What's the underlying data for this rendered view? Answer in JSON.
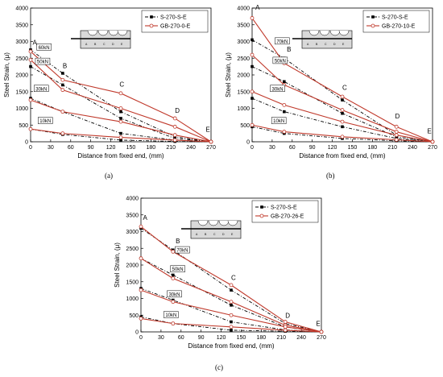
{
  "colors": {
    "specimen": "#000000",
    "gb": "#c0392b",
    "frame": "#000000"
  },
  "chart_data": [
    {
      "type": "line",
      "caption": "(a)",
      "xlabel": "Distance from fixed end, (mm)",
      "ylabel": "Steel Strain, (μ)",
      "xlim": [
        0,
        270
      ],
      "ylim": [
        0,
        4000
      ],
      "xticks": [
        "0",
        "30",
        "60",
        "90",
        "120",
        "150",
        "180",
        "210",
        "240",
        "270"
      ],
      "yticks": [
        "0",
        "500",
        "1000",
        "1500",
        "2000",
        "2500",
        "3000",
        "3500",
        "4000"
      ],
      "legend": {
        "placement": "top-right",
        "entries": [
          "S-270-S-E",
          "GB-270-0-E"
        ]
      },
      "point_labels": [
        {
          "text": "A",
          "x": 3,
          "y": 2900
        },
        {
          "text": "B",
          "x": 48,
          "y": 2200
        },
        {
          "text": "C",
          "x": 133,
          "y": 1650
        },
        {
          "text": "D",
          "x": 216,
          "y": 870
        },
        {
          "text": "E",
          "x": 262,
          "y": 300
        }
      ],
      "load_labels": [
        {
          "text": "60kN",
          "x": 20,
          "y": 2800
        },
        {
          "text": "50kN",
          "x": 18,
          "y": 2370
        },
        {
          "text": "30kN",
          "x": 16,
          "y": 1560
        },
        {
          "text": "10kN",
          "x": 22,
          "y": 600
        }
      ],
      "series": [
        {
          "name": "S-270-S-E",
          "load": "60kN",
          "style": "specimen",
          "x": [
            0,
            48,
            135,
            216,
            270
          ],
          "y": [
            2750,
            2050,
            900,
            150,
            0
          ]
        },
        {
          "name": "S-270-S-E",
          "load": "50kN",
          "style": "specimen",
          "x": [
            0,
            48,
            135,
            216,
            270
          ],
          "y": [
            2250,
            1700,
            700,
            100,
            0
          ]
        },
        {
          "name": "S-270-S-E",
          "load": "30kN",
          "style": "specimen",
          "x": [
            0,
            48,
            135,
            216,
            270
          ],
          "y": [
            1300,
            900,
            250,
            50,
            0
          ]
        },
        {
          "name": "S-270-S-E",
          "load": "10kN",
          "style": "specimen",
          "x": [
            0,
            48,
            135,
            216,
            270
          ],
          "y": [
            380,
            220,
            50,
            10,
            0
          ]
        },
        {
          "name": "GB-270-0-E",
          "load": "60kN",
          "style": "gb",
          "x": [
            0,
            48,
            135,
            216,
            270
          ],
          "y": [
            2700,
            1850,
            1450,
            700,
            0
          ]
        },
        {
          "name": "GB-270-0-E",
          "load": "50kN",
          "style": "gb",
          "x": [
            0,
            48,
            135,
            216,
            270
          ],
          "y": [
            2450,
            1550,
            1000,
            450,
            0
          ]
        },
        {
          "name": "GB-270-0-E",
          "load": "30kN",
          "style": "gb",
          "x": [
            0,
            48,
            135,
            216,
            270
          ],
          "y": [
            1250,
            900,
            600,
            200,
            0
          ]
        },
        {
          "name": "GB-270-0-E",
          "load": "10kN",
          "style": "gb",
          "x": [
            0,
            48,
            135,
            216,
            270
          ],
          "y": [
            380,
            250,
            130,
            50,
            0
          ]
        }
      ]
    },
    {
      "type": "line",
      "caption": "(b)",
      "xlabel": "Distance from fixed end, (mm)",
      "ylabel": "Steel Strain, (μ)",
      "xlim": [
        0,
        270
      ],
      "ylim": [
        0,
        4000
      ],
      "xticks": [
        "0",
        "30",
        "60",
        "90",
        "120",
        "150",
        "180",
        "210",
        "240",
        "270"
      ],
      "yticks": [
        "0",
        "500",
        "1000",
        "1500",
        "2000",
        "2500",
        "3000",
        "3500",
        "4000"
      ],
      "legend": {
        "placement": "top-right",
        "entries": [
          "S-270-S-E",
          "GB-270-10-E"
        ]
      },
      "point_labels": [
        {
          "text": "A",
          "x": 5,
          "y": 3950
        },
        {
          "text": "B",
          "x": 52,
          "y": 2700
        },
        {
          "text": "C",
          "x": 135,
          "y": 1550
        },
        {
          "text": "D",
          "x": 214,
          "y": 700
        },
        {
          "text": "E",
          "x": 262,
          "y": 250
        }
      ],
      "load_labels": [
        {
          "text": "70kN",
          "x": 45,
          "y": 2980
        },
        {
          "text": "50kN",
          "x": 42,
          "y": 2400
        },
        {
          "text": "30kN",
          "x": 38,
          "y": 1560
        },
        {
          "text": "10kN",
          "x": 40,
          "y": 600
        }
      ],
      "series": [
        {
          "name": "S-270-S-E",
          "load": "70kN",
          "style": "specimen",
          "x": [
            0,
            48,
            135,
            216,
            270
          ],
          "y": [
            3050,
            2500,
            1250,
            200,
            0
          ]
        },
        {
          "name": "S-270-S-E",
          "load": "50kN",
          "style": "specimen",
          "x": [
            0,
            48,
            135,
            216,
            270
          ],
          "y": [
            2250,
            1800,
            850,
            150,
            0
          ]
        },
        {
          "name": "S-270-S-E",
          "load": "30kN",
          "style": "specimen",
          "x": [
            0,
            48,
            135,
            216,
            270
          ],
          "y": [
            1300,
            900,
            450,
            100,
            0
          ]
        },
        {
          "name": "S-270-S-E",
          "load": "10kN",
          "style": "specimen",
          "x": [
            0,
            48,
            135,
            216,
            270
          ],
          "y": [
            450,
            250,
            100,
            30,
            0
          ]
        },
        {
          "name": "GB-270-10-E",
          "load": "70kN",
          "style": "gb",
          "x": [
            0,
            48,
            135,
            216,
            270
          ],
          "y": [
            3700,
            2350,
            1350,
            450,
            0
          ]
        },
        {
          "name": "GB-270-10-E",
          "load": "50kN",
          "style": "gb",
          "x": [
            0,
            48,
            135,
            216,
            270
          ],
          "y": [
            2600,
            1700,
            950,
            300,
            0
          ]
        },
        {
          "name": "GB-270-10-E",
          "load": "30kN",
          "style": "gb",
          "x": [
            0,
            48,
            135,
            216,
            270
          ],
          "y": [
            1500,
            1100,
            600,
            200,
            0
          ]
        },
        {
          "name": "GB-270-10-E",
          "load": "10kN",
          "style": "gb",
          "x": [
            0,
            48,
            135,
            216,
            270
          ],
          "y": [
            500,
            300,
            150,
            60,
            0
          ]
        }
      ]
    },
    {
      "type": "line",
      "caption": "(c)",
      "xlabel": "Distance from fixed end, (mm)",
      "ylabel": "Steel Strain, (μ)",
      "xlim": [
        0,
        270
      ],
      "ylim": [
        0,
        4000
      ],
      "xticks": [
        "0",
        "30",
        "60",
        "90",
        "120",
        "150",
        "180",
        "210",
        "240",
        "270"
      ],
      "yticks": [
        "0",
        "500",
        "1000",
        "1500",
        "2000",
        "2500",
        "3000",
        "3500",
        "4000"
      ],
      "legend": {
        "placement": "top-right",
        "entries": [
          "S-270-S-E",
          "GB-270-26-E"
        ]
      },
      "point_labels": [
        {
          "text": "A",
          "x": 3,
          "y": 3350
        },
        {
          "text": "B",
          "x": 52,
          "y": 2650
        },
        {
          "text": "C",
          "x": 135,
          "y": 1550
        },
        {
          "text": "D",
          "x": 216,
          "y": 420
        },
        {
          "text": "E",
          "x": 262,
          "y": 180
        }
      ],
      "load_labels": [
        {
          "text": "70kN",
          "x": 62,
          "y": 2420
        },
        {
          "text": "50kN",
          "x": 55,
          "y": 1850
        },
        {
          "text": "30kN",
          "x": 50,
          "y": 1100
        },
        {
          "text": "10kN",
          "x": 45,
          "y": 480
        }
      ],
      "series": [
        {
          "name": "S-270-S-E",
          "load": "70kN",
          "style": "specimen",
          "x": [
            0,
            48,
            135,
            216,
            270
          ],
          "y": [
            3100,
            2450,
            1250,
            250,
            0
          ]
        },
        {
          "name": "S-270-S-E",
          "load": "50kN",
          "style": "specimen",
          "x": [
            0,
            48,
            135,
            216,
            270
          ],
          "y": [
            2200,
            1700,
            800,
            150,
            0
          ]
        },
        {
          "name": "S-270-S-E",
          "load": "30kN",
          "style": "specimen",
          "x": [
            0,
            48,
            135,
            216,
            270
          ],
          "y": [
            1300,
            950,
            300,
            60,
            0
          ]
        },
        {
          "name": "S-270-S-E",
          "load": "10kN",
          "style": "specimen",
          "x": [
            0,
            48,
            135,
            216,
            270
          ],
          "y": [
            450,
            250,
            50,
            20,
            0
          ]
        },
        {
          "name": "GB-270-26-E",
          "load": "70kN",
          "style": "gb",
          "x": [
            0,
            48,
            135,
            216,
            270
          ],
          "y": [
            3150,
            2400,
            1400,
            300,
            0
          ]
        },
        {
          "name": "GB-270-26-E",
          "load": "50kN",
          "style": "gb",
          "x": [
            0,
            48,
            135,
            216,
            270
          ],
          "y": [
            2200,
            1600,
            900,
            200,
            0
          ]
        },
        {
          "name": "GB-270-26-E",
          "load": "30kN",
          "style": "gb",
          "x": [
            0,
            48,
            135,
            216,
            270
          ],
          "y": [
            1250,
            900,
            500,
            150,
            0
          ]
        },
        {
          "name": "GB-270-26-E",
          "load": "10kN",
          "style": "gb",
          "x": [
            0,
            48,
            135,
            216,
            270
          ],
          "y": [
            400,
            250,
            150,
            50,
            0
          ]
        }
      ]
    }
  ]
}
